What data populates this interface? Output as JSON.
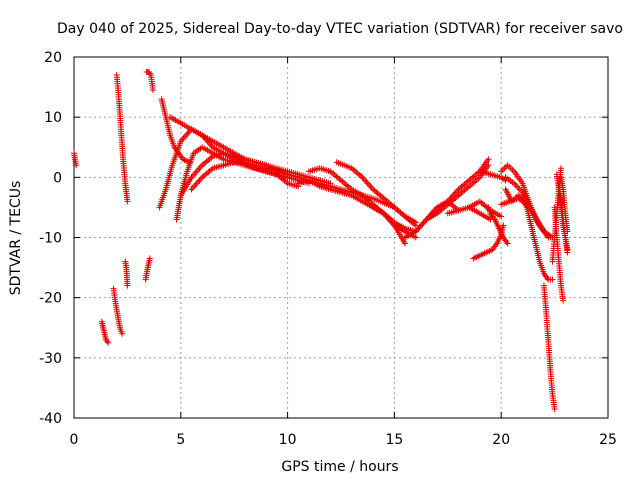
{
  "chart_data": {
    "type": "scatter",
    "title": "Day 040 of 2025, Sidereal Day-to-day VTEC variation (SDTVAR) for receiver savo",
    "xlabel": "GPS time / hours",
    "ylabel": "SDTVAR / TECUs",
    "xlim": [
      0,
      25
    ],
    "ylim": [
      -40,
      20
    ],
    "xticks": [
      0,
      5,
      10,
      15,
      20,
      25
    ],
    "yticks": [
      -40,
      -30,
      -20,
      -10,
      0,
      10,
      20
    ],
    "xtick_labels": [
      "0",
      "5",
      "10",
      "15",
      "20",
      "25"
    ],
    "ytick_labels": [
      "-40",
      "-30",
      "-20",
      "-10",
      "0",
      "10",
      "20"
    ],
    "grid": true,
    "marker": "+",
    "color": "#ee0000",
    "series": [
      {
        "name": "t0",
        "x": [
          0.0,
          0.05,
          0.1
        ],
        "y": [
          4.0,
          3.0,
          2.0
        ]
      },
      {
        "name": "a1",
        "x": [
          1.3,
          1.4,
          1.5,
          1.6
        ],
        "y": [
          -24,
          -25.5,
          -27,
          -27.5
        ]
      },
      {
        "name": "a2",
        "x": [
          1.85,
          1.95,
          2.05,
          2.15,
          2.25
        ],
        "y": [
          -18.5,
          -21,
          -23,
          -25,
          -26
        ]
      },
      {
        "name": "a3",
        "x": [
          2.4,
          2.45,
          2.5
        ],
        "y": [
          -14,
          -15,
          -18
        ]
      },
      {
        "name": "b1",
        "x": [
          2.0,
          2.1,
          2.2,
          2.3,
          2.4,
          2.5
        ],
        "y": [
          17,
          13,
          8,
          3,
          -1,
          -4
        ]
      },
      {
        "name": "b2",
        "x": [
          3.4,
          3.5,
          3.6,
          3.7
        ],
        "y": [
          17.5,
          17.5,
          17,
          14.5
        ]
      },
      {
        "name": "b3",
        "x": [
          3.35,
          3.45,
          3.55
        ],
        "y": [
          -17,
          -15,
          -13.5
        ]
      },
      {
        "name": "c1",
        "x": [
          4.1,
          4.3,
          4.5,
          4.7,
          4.9,
          5.1,
          5.4
        ],
        "y": [
          13,
          10,
          7,
          5,
          4,
          3,
          2.5
        ]
      },
      {
        "name": "c2",
        "x": [
          4.0,
          4.3,
          4.6,
          5.0,
          5.5,
          6.0,
          6.5,
          7.5,
          8.5,
          10.0,
          11.0
        ],
        "y": [
          -5,
          -2,
          2,
          6,
          8,
          7,
          5,
          3,
          1.5,
          0,
          -1
        ]
      },
      {
        "name": "c3",
        "x": [
          4.8,
          5.0,
          5.3,
          5.6,
          6.0,
          6.5,
          7.0,
          8.0,
          9.0,
          10.0
        ],
        "y": [
          -7,
          -3,
          1,
          4,
          5,
          4,
          3,
          2,
          1,
          0
        ]
      },
      {
        "name": "c4",
        "x": [
          5.0,
          5.5,
          6.0,
          6.5,
          7.0,
          8.0,
          9.0,
          10.0,
          11.0,
          12.0
        ],
        "y": [
          -3,
          0,
          2,
          3.5,
          4,
          3,
          2,
          1,
          0,
          -1
        ]
      },
      {
        "name": "c5",
        "x": [
          4.5,
          5.0,
          5.5,
          6.0,
          7.0,
          8.0,
          9.0,
          10.0
        ],
        "y": [
          10,
          9,
          8,
          7,
          5,
          3,
          2,
          0.5
        ]
      },
      {
        "name": "c6",
        "x": [
          5.5,
          6.0,
          6.5,
          7.0,
          7.5,
          8.0,
          9.0,
          10.0,
          11.0,
          12.0,
          13.0,
          14.0,
          15.0,
          15.5,
          16.0
        ],
        "y": [
          -2,
          0,
          1.5,
          2,
          2.5,
          2.5,
          1.5,
          0.5,
          -0.5,
          -1.5,
          -2.5,
          -3.5,
          -5,
          -6.5,
          -8
        ]
      },
      {
        "name": "d1",
        "x": [
          9.0,
          9.5,
          10.0,
          10.5
        ],
        "y": [
          1,
          0.5,
          -1,
          -1.5
        ]
      },
      {
        "name": "d2",
        "x": [
          10.5,
          11.0,
          11.5,
          12.0,
          12.5,
          13.0,
          13.5,
          14.0,
          14.5,
          15.0,
          15.5,
          16.0
        ],
        "y": [
          -1,
          -0.5,
          -1.5,
          -2,
          -2.5,
          -3,
          -4,
          -5,
          -6,
          -8,
          -9,
          -10
        ]
      },
      {
        "name": "d3",
        "x": [
          11.0,
          11.5,
          12.0,
          12.5,
          13.0,
          13.5,
          14.0,
          14.5,
          15.0,
          15.5
        ],
        "y": [
          1,
          1.5,
          1,
          -0.5,
          -2,
          -3,
          -4.5,
          -6,
          -8,
          -11
        ]
      },
      {
        "name": "d4",
        "x": [
          12.3,
          13.0,
          13.5,
          14.0,
          14.5,
          15.0,
          15.5,
          16.0
        ],
        "y": [
          2.5,
          1.5,
          0,
          -2,
          -3.5,
          -5,
          -6.5,
          -7.5
        ]
      },
      {
        "name": "d5",
        "x": [
          14.0,
          14.5,
          15.0,
          15.5,
          16.0,
          16.5,
          17.0,
          17.5,
          18.0
        ],
        "y": [
          -5,
          -6,
          -7.5,
          -8.5,
          -9,
          -7,
          -5,
          -4,
          -5.5
        ]
      },
      {
        "name": "e1",
        "x": [
          15.5,
          16.0,
          16.5,
          17.0,
          17.5,
          18.0,
          18.5,
          19.0,
          19.4
        ],
        "y": [
          -10,
          -9,
          -7,
          -5.5,
          -4,
          -2,
          -0.5,
          1,
          3
        ]
      },
      {
        "name": "e2",
        "x": [
          16.5,
          17.0,
          17.5,
          18.0,
          18.5,
          19.0,
          19.4
        ],
        "y": [
          -7,
          -6,
          -4.5,
          -3,
          -1.5,
          0,
          2
        ]
      },
      {
        "name": "e3",
        "x": [
          17.5,
          18.0,
          18.5,
          19.0,
          19.5
        ],
        "y": [
          -6,
          -5.5,
          -5,
          -6,
          -7
        ]
      },
      {
        "name": "e4",
        "x": [
          18.5,
          19.0,
          19.5,
          20.0
        ],
        "y": [
          -5,
          -4,
          -5.5,
          -6.5
        ]
      },
      {
        "name": "e5",
        "x": [
          19.0,
          19.5,
          20.0,
          20.2
        ],
        "y": [
          1,
          0.5,
          0,
          -0.5
        ]
      },
      {
        "name": "e6",
        "x": [
          19.4,
          19.5,
          19.7,
          19.9,
          20.1,
          20.3
        ],
        "y": [
          -5,
          -6,
          -7,
          -8.5,
          -10,
          -11
        ]
      },
      {
        "name": "f1",
        "x": [
          18.7,
          19.0,
          19.3,
          19.6,
          19.8,
          20.0,
          20.1
        ],
        "y": [
          -13.5,
          -13,
          -12.5,
          -12,
          -11,
          -9.5,
          -8
        ]
      },
      {
        "name": "g1",
        "x": [
          20.0,
          20.3,
          20.6,
          21.0,
          21.3,
          21.6,
          22.0,
          22.3
        ],
        "y": [
          1,
          2,
          1,
          -1,
          -4,
          -7,
          -9,
          -10
        ]
      },
      {
        "name": "g2",
        "x": [
          20.2,
          20.5,
          20.8,
          21.0,
          21.2,
          21.4,
          21.6,
          21.8,
          22.0,
          22.2,
          22.4
        ],
        "y": [
          -2,
          -4,
          -3,
          -3.5,
          -5,
          -8,
          -11,
          -14,
          -16,
          -17,
          -17
        ]
      },
      {
        "name": "g3",
        "x": [
          20.0,
          20.4,
          20.8,
          21.2,
          21.6,
          22.0,
          22.4
        ],
        "y": [
          -4.5,
          -4,
          -3.5,
          -4.5,
          -6.5,
          -9,
          -10
        ]
      },
      {
        "name": "g4",
        "x": [
          20.2,
          20.6,
          21.0,
          21.4,
          21.8,
          22.2
        ],
        "y": [
          0,
          -1,
          -2.5,
          -5,
          -8,
          -10
        ]
      },
      {
        "name": "h1",
        "x": [
          22.0,
          22.1,
          22.2,
          22.3,
          22.4,
          22.5
        ],
        "y": [
          -18,
          -22,
          -27,
          -32,
          -36,
          -38.5
        ]
      },
      {
        "name": "h2",
        "x": [
          22.4,
          22.5,
          22.6,
          22.7,
          22.8
        ],
        "y": [
          -14,
          -10,
          -6,
          -2,
          1.5
        ]
      },
      {
        "name": "h3",
        "x": [
          22.5,
          22.6,
          22.7,
          22.8,
          22.9
        ],
        "y": [
          -5,
          -10,
          -14,
          -18,
          -20.5
        ]
      },
      {
        "name": "h4",
        "x": [
          22.6,
          22.7,
          22.8,
          22.9,
          23.0,
          23.1
        ],
        "y": [
          0.5,
          -2,
          -5,
          -8,
          -10,
          -12.5
        ]
      },
      {
        "name": "h5",
        "x": [
          22.7,
          22.8,
          22.9,
          23.0,
          23.1
        ],
        "y": [
          -1,
          -4,
          -7,
          -10,
          -12
        ]
      },
      {
        "name": "h6",
        "x": [
          22.8,
          22.9,
          23.0,
          23.1
        ],
        "y": [
          0,
          -2,
          -6,
          -9
        ]
      }
    ]
  }
}
